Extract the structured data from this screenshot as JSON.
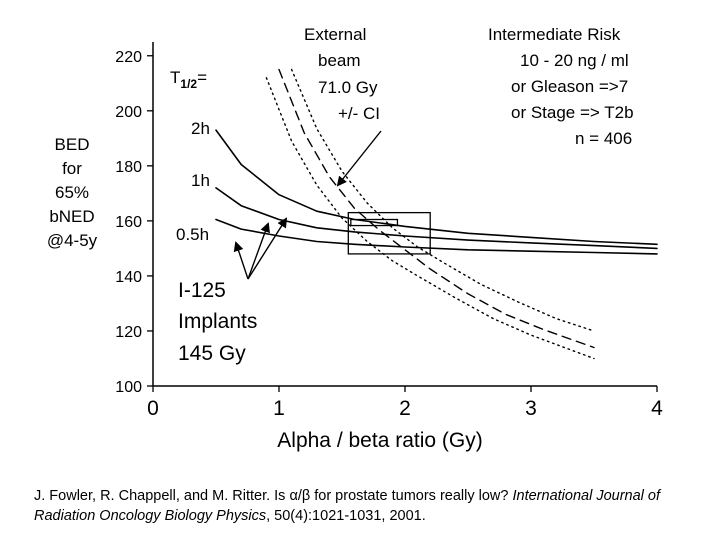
{
  "chart_data": {
    "type": "line",
    "xlabel": "Alpha / beta  ratio  (Gy)",
    "ylabel_lines": [
      "BED",
      "for",
      "65%",
      "bNED",
      "@4-5y"
    ],
    "xlim": [
      0,
      4
    ],
    "ylim": [
      100,
      225
    ],
    "x_ticks": [
      "0",
      "1",
      "2",
      "3",
      "4"
    ],
    "x_tick_values": [
      0,
      1,
      2,
      3,
      4
    ],
    "y_ticks": [
      "100",
      "120",
      "140",
      "160",
      "180",
      "200",
      "220"
    ],
    "y_tick_values": [
      100,
      120,
      140,
      160,
      180,
      200,
      220
    ],
    "grid": false,
    "series": [
      {
        "name": "2h",
        "style": "solid",
        "x": [
          0.5,
          0.7,
          1.0,
          1.3,
          1.6,
          2.0,
          2.5,
          3.0,
          3.5,
          4.0
        ],
        "y": [
          193,
          180.5,
          169.5,
          163.5,
          160.5,
          158,
          155.5,
          154,
          152.5,
          151.5
        ]
      },
      {
        "name": "1h",
        "style": "solid",
        "x": [
          0.5,
          0.7,
          1.0,
          1.3,
          1.6,
          2.0,
          2.5,
          3.0,
          3.5,
          4.0
        ],
        "y": [
          172,
          165.5,
          160.5,
          157.5,
          156,
          154.5,
          153,
          152,
          151,
          150
        ]
      },
      {
        "name": "0.5h",
        "style": "solid",
        "x": [
          0.5,
          0.7,
          1.0,
          1.3,
          1.6,
          2.0,
          2.5,
          3.0,
          3.5,
          4.0
        ],
        "y": [
          160.5,
          157,
          154.5,
          152.5,
          151.5,
          150.5,
          149.5,
          149,
          148.5,
          148
        ]
      },
      {
        "name": "External beam 71.0 Gy",
        "style": "dashed",
        "x": [
          1.0,
          1.2,
          1.4,
          1.6,
          1.8,
          2.0,
          2.2,
          2.5,
          2.8,
          3.1,
          3.5
        ],
        "y": [
          215,
          192,
          176,
          164.5,
          156.5,
          149.5,
          142.5,
          133.5,
          126,
          120.5,
          114
        ]
      },
      {
        "name": "+CI",
        "style": "dotted",
        "x": [
          1.1,
          1.3,
          1.5,
          1.7,
          1.9,
          2.1,
          2.3,
          2.6,
          2.9,
          3.2,
          3.5
        ],
        "y": [
          215,
          193.5,
          178,
          166.5,
          157.5,
          150.5,
          145,
          137,
          130.5,
          124.5,
          120
        ]
      },
      {
        "name": "-CI",
        "style": "dotted",
        "x": [
          0.9,
          1.1,
          1.3,
          1.5,
          1.7,
          1.9,
          2.1,
          2.4,
          2.7,
          3.0,
          3.5
        ],
        "y": [
          212,
          189,
          173,
          161,
          152.5,
          145.5,
          140,
          132,
          124.5,
          118.5,
          110
        ]
      }
    ],
    "rectangles": [
      {
        "x0": 1.55,
        "x1": 2.2,
        "y0": 148,
        "y1": 163
      },
      {
        "x0": 1.57,
        "x1": 1.94,
        "y0": 158.3,
        "y1": 160.5
      }
    ],
    "annotations": {
      "t_half_main": "T",
      "t_half_sub": "1/2",
      "t_half_eq": "=",
      "label_2h": "2h",
      "label_1h": "1h",
      "label_05h": "0.5h",
      "implant_lines": [
        "I-125",
        "Implants",
        "145 Gy"
      ],
      "ebrt_lines": [
        "External",
        "beam",
        "71.0 Gy",
        "+/-  CI"
      ],
      "risk_lines": [
        "Intermediate  Risk",
        "10 - 20 ng / ml",
        "or Gleason =>7",
        "or Stage => T2b",
        "n = 406"
      ]
    }
  },
  "citation": {
    "authors": "J. Fowler, R. Chappell, and M. Ritter. Is α/β for prostate tumors really low? ",
    "journal": "International Journal of Radiation Oncology Biology Physics",
    "details": ", 50(4):1021-1031, 2001."
  }
}
